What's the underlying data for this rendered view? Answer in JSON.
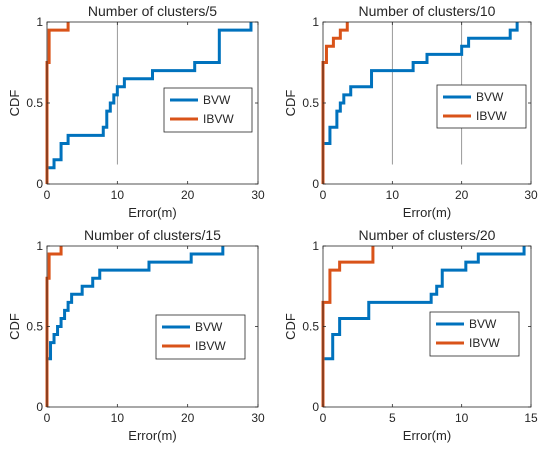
{
  "colors": {
    "BVW": "#0072BD",
    "IBVW": "#D95319",
    "axis": "#262626",
    "grid": "#808080"
  },
  "chart_data": [
    {
      "type": "line",
      "title": "Number of clusters/5",
      "xlabel": "Error(m)",
      "ylabel": "CDF",
      "xlim": [
        0,
        30
      ],
      "ylim": [
        0,
        1
      ],
      "xticks": [
        "0",
        "10",
        "20",
        "30"
      ],
      "yticks": [
        "0",
        "0.5",
        "1"
      ],
      "legend": "mid-right",
      "vlines": [
        10
      ],
      "series": [
        {
          "name": "BVW",
          "color": "#0072BD",
          "x": [
            0,
            0,
            1,
            1,
            2,
            2,
            3,
            3,
            4,
            4,
            8,
            8,
            8.5,
            8.5,
            9,
            9,
            9.5,
            9.5,
            10,
            10,
            10.5,
            10.5,
            11,
            11,
            15,
            15,
            21,
            21,
            24.5,
            24.5,
            29,
            29
          ],
          "y": [
            0,
            0.1,
            0.1,
            0.15,
            0.15,
            0.25,
            0.25,
            0.3,
            0.3,
            0.3,
            0.3,
            0.35,
            0.35,
            0.45,
            0.45,
            0.5,
            0.5,
            0.55,
            0.55,
            0.6,
            0.6,
            0.6,
            0.6,
            0.65,
            0.65,
            0.7,
            0.7,
            0.75,
            0.75,
            0.95,
            0.95,
            1
          ]
        },
        {
          "name": "IBVW",
          "color": "#D95319",
          "x": [
            0,
            0,
            0.3,
            0.3,
            0.6,
            0.6,
            3,
            3
          ],
          "y": [
            0,
            0.75,
            0.75,
            0.95,
            0.95,
            0.95,
            0.95,
            1
          ]
        }
      ]
    },
    {
      "type": "line",
      "title": "Number of clusters/10",
      "xlabel": "Error(m)",
      "ylabel": "CDF",
      "xlim": [
        0,
        30
      ],
      "ylim": [
        0,
        1
      ],
      "xticks": [
        "0",
        "10",
        "20",
        "30"
      ],
      "yticks": [
        "0",
        "0.5",
        "1"
      ],
      "legend": "mid-right",
      "vlines": [
        10,
        20
      ],
      "series": [
        {
          "name": "BVW",
          "color": "#0072BD",
          "x": [
            0,
            0,
            1,
            1,
            2,
            2,
            2.5,
            2.5,
            3,
            3,
            4,
            4,
            7,
            7,
            13,
            13,
            15,
            15,
            20,
            20,
            21,
            21,
            27,
            27,
            28,
            28
          ],
          "y": [
            0,
            0.25,
            0.25,
            0.35,
            0.35,
            0.45,
            0.45,
            0.5,
            0.5,
            0.55,
            0.55,
            0.6,
            0.6,
            0.7,
            0.7,
            0.75,
            0.75,
            0.8,
            0.8,
            0.85,
            0.85,
            0.9,
            0.9,
            0.95,
            0.95,
            1
          ]
        },
        {
          "name": "IBVW",
          "color": "#D95319",
          "x": [
            0,
            0,
            0.5,
            0.5,
            1.5,
            1.5,
            2.5,
            2.5,
            3.5,
            3.5
          ],
          "y": [
            0,
            0.75,
            0.75,
            0.85,
            0.85,
            0.9,
            0.9,
            0.95,
            0.95,
            1
          ]
        }
      ]
    },
    {
      "type": "line",
      "title": "Number of clusters/15",
      "xlabel": "Error(m)",
      "ylabel": "CDF",
      "xlim": [
        0,
        30
      ],
      "ylim": [
        0,
        1
      ],
      "xticks": [
        "0",
        "10",
        "20",
        "30"
      ],
      "yticks": [
        "0",
        "0.5",
        "1"
      ],
      "legend": "bottom-right",
      "vlines": [],
      "series": [
        {
          "name": "BVW",
          "color": "#0072BD",
          "x": [
            0,
            0,
            0.5,
            0.5,
            1,
            1,
            1.5,
            1.5,
            2,
            2,
            2.5,
            2.5,
            3,
            3,
            3.5,
            3.5,
            4,
            4,
            5,
            5,
            5.5,
            5.5,
            6.5,
            6.5,
            7.5,
            7.5,
            14.5,
            14.5,
            20.5,
            20.5,
            25,
            25
          ],
          "y": [
            0,
            0.3,
            0.3,
            0.4,
            0.4,
            0.45,
            0.45,
            0.5,
            0.5,
            0.55,
            0.55,
            0.6,
            0.6,
            0.65,
            0.65,
            0.7,
            0.7,
            0.7,
            0.7,
            0.75,
            0.75,
            0.75,
            0.75,
            0.8,
            0.8,
            0.85,
            0.85,
            0.9,
            0.9,
            0.95,
            0.95,
            1
          ]
        },
        {
          "name": "IBVW",
          "color": "#D95319",
          "x": [
            0,
            0,
            0.3,
            0.3,
            1.2,
            1.2,
            2,
            2
          ],
          "y": [
            0,
            0.8,
            0.8,
            0.95,
            0.95,
            0.95,
            0.95,
            1
          ]
        }
      ]
    },
    {
      "type": "line",
      "title": "Number of clusters/20",
      "xlabel": "Error(m)",
      "ylabel": "CDF",
      "xlim": [
        0,
        15
      ],
      "ylim": [
        0,
        1
      ],
      "xticks": [
        "0",
        "5",
        "10",
        "15"
      ],
      "yticks": [
        "0",
        "0.5",
        "1"
      ],
      "legend": "bottom-right",
      "vlines": [],
      "series": [
        {
          "name": "BVW",
          "color": "#0072BD",
          "x": [
            0,
            0,
            0.7,
            0.7,
            1.2,
            1.2,
            3.3,
            3.3,
            7.8,
            7.8,
            8.2,
            8.2,
            8.6,
            8.6,
            10.3,
            10.3,
            11.2,
            11.2,
            14.5,
            14.5
          ],
          "y": [
            0,
            0.3,
            0.3,
            0.45,
            0.45,
            0.55,
            0.55,
            0.65,
            0.65,
            0.7,
            0.7,
            0.75,
            0.75,
            0.85,
            0.85,
            0.9,
            0.9,
            0.95,
            0.95,
            1
          ]
        },
        {
          "name": "IBVW",
          "color": "#D95319",
          "x": [
            0,
            0,
            0.5,
            0.5,
            0.9,
            0.9,
            1.2,
            1.2,
            3.6,
            3.6
          ],
          "y": [
            0,
            0.65,
            0.65,
            0.85,
            0.85,
            0.85,
            0.85,
            0.9,
            0.9,
            1
          ]
        }
      ]
    }
  ]
}
